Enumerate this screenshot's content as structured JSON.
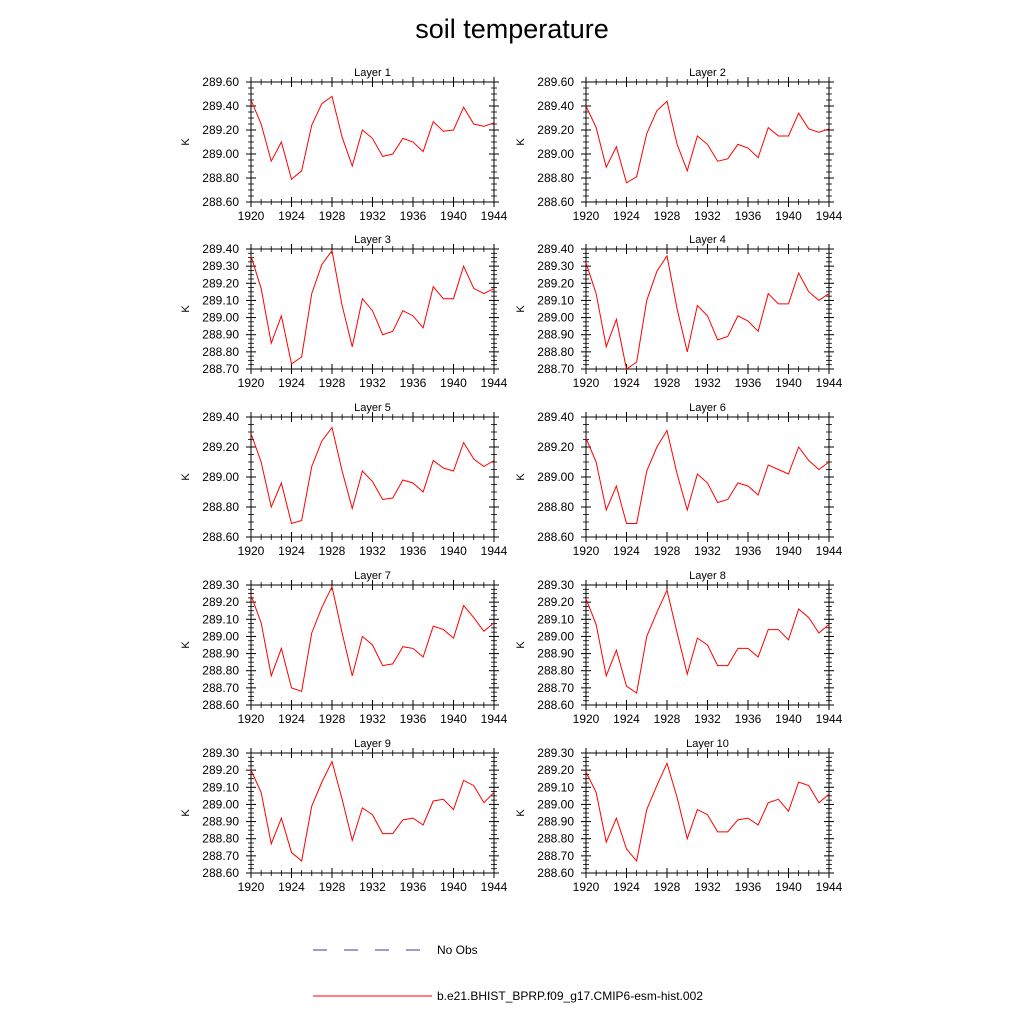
{
  "figure": {
    "title": "soil temperature"
  },
  "legend": {
    "items": [
      {
        "label": "No Obs",
        "color": "#3a3aa0",
        "style": "dashed"
      },
      {
        "label": "b.e21.BHIST_BPRP.f09_g17.CMIP6-esm-hist.002",
        "color": "#ff0000",
        "style": "solid"
      }
    ]
  },
  "chart_data": [
    {
      "type": "line",
      "title": "Layer 1",
      "ylabel": "K",
      "xlim": [
        1920,
        1944
      ],
      "ylim": [
        288.6,
        289.6
      ],
      "yticks": [
        "288.60",
        "288.80",
        "289.00",
        "289.20",
        "289.40",
        "289.60"
      ],
      "xticks": [
        "1920",
        "1924",
        "1928",
        "1932",
        "1936",
        "1940",
        "1944"
      ],
      "x": [
        1920,
        1921,
        1922,
        1923,
        1924,
        1925,
        1926,
        1927,
        1928,
        1929,
        1930,
        1931,
        1932,
        1933,
        1934,
        1935,
        1936,
        1937,
        1938,
        1939,
        1940,
        1941,
        1942,
        1943,
        1944
      ],
      "series": [
        {
          "name": "b.e21.BHIST_BPRP.f09_g17.CMIP6-esm-hist.002",
          "color": "#ff0000",
          "values": [
            289.45,
            289.25,
            288.94,
            289.1,
            288.79,
            288.86,
            289.24,
            289.42,
            289.48,
            289.14,
            288.9,
            289.2,
            289.13,
            288.98,
            289.0,
            289.13,
            289.1,
            289.02,
            289.27,
            289.19,
            289.2,
            289.39,
            289.25,
            289.23,
            289.26
          ]
        }
      ]
    },
    {
      "type": "line",
      "title": "Layer 2",
      "ylabel": "K",
      "xlim": [
        1920,
        1944
      ],
      "ylim": [
        288.6,
        289.6
      ],
      "yticks": [
        "288.60",
        "288.80",
        "289.00",
        "289.20",
        "289.40",
        "289.60"
      ],
      "xticks": [
        "1920",
        "1924",
        "1928",
        "1932",
        "1936",
        "1940",
        "1944"
      ],
      "x": [
        1920,
        1921,
        1922,
        1923,
        1924,
        1925,
        1926,
        1927,
        1928,
        1929,
        1930,
        1931,
        1932,
        1933,
        1934,
        1935,
        1936,
        1937,
        1938,
        1939,
        1940,
        1941,
        1942,
        1943,
        1944
      ],
      "series": [
        {
          "name": "b.e21.BHIST_BPRP.f09_g17.CMIP6-esm-hist.002",
          "color": "#ff0000",
          "values": [
            289.4,
            289.22,
            288.89,
            289.06,
            288.76,
            288.81,
            289.17,
            289.36,
            289.44,
            289.08,
            288.86,
            289.15,
            289.08,
            288.94,
            288.96,
            289.08,
            289.05,
            288.97,
            289.22,
            289.15,
            289.15,
            289.34,
            289.21,
            289.18,
            289.21
          ]
        }
      ]
    },
    {
      "type": "line",
      "title": "Layer 3",
      "ylabel": "K",
      "xlim": [
        1920,
        1944
      ],
      "ylim": [
        288.7,
        289.4
      ],
      "yticks": [
        "288.70",
        "288.80",
        "288.90",
        "289.00",
        "289.10",
        "289.20",
        "289.30",
        "289.40"
      ],
      "xticks": [
        "1920",
        "1924",
        "1928",
        "1932",
        "1936",
        "1940",
        "1944"
      ],
      "x": [
        1920,
        1921,
        1922,
        1923,
        1924,
        1925,
        1926,
        1927,
        1928,
        1929,
        1930,
        1931,
        1932,
        1933,
        1934,
        1935,
        1936,
        1937,
        1938,
        1939,
        1940,
        1941,
        1942,
        1943,
        1944
      ],
      "series": [
        {
          "name": "b.e21.BHIST_BPRP.f09_g17.CMIP6-esm-hist.002",
          "color": "#ff0000",
          "values": [
            289.36,
            289.17,
            288.85,
            289.01,
            288.73,
            288.77,
            289.14,
            289.31,
            289.39,
            289.07,
            288.83,
            289.11,
            289.04,
            288.9,
            288.92,
            289.04,
            289.01,
            288.94,
            289.18,
            289.11,
            289.11,
            289.3,
            289.17,
            289.14,
            289.17
          ]
        }
      ]
    },
    {
      "type": "line",
      "title": "Layer 4",
      "ylabel": "K",
      "xlim": [
        1920,
        1944
      ],
      "ylim": [
        288.7,
        289.4
      ],
      "yticks": [
        "288.70",
        "288.80",
        "288.90",
        "289.00",
        "289.10",
        "289.20",
        "289.30",
        "289.40"
      ],
      "xticks": [
        "1920",
        "1924",
        "1928",
        "1932",
        "1936",
        "1940",
        "1944"
      ],
      "x": [
        1920,
        1921,
        1922,
        1923,
        1924,
        1925,
        1926,
        1927,
        1928,
        1929,
        1930,
        1931,
        1932,
        1933,
        1934,
        1935,
        1936,
        1937,
        1938,
        1939,
        1940,
        1941,
        1942,
        1943,
        1944
      ],
      "series": [
        {
          "name": "b.e21.BHIST_BPRP.f09_g17.CMIP6-esm-hist.002",
          "color": "#ff0000",
          "values": [
            289.32,
            289.14,
            288.83,
            288.99,
            288.7,
            288.74,
            289.1,
            289.27,
            289.36,
            289.05,
            288.8,
            289.07,
            289.01,
            288.87,
            288.89,
            289.01,
            288.98,
            288.92,
            289.14,
            289.08,
            289.08,
            289.26,
            289.15,
            289.1,
            289.14
          ]
        }
      ]
    },
    {
      "type": "line",
      "title": "Layer 5",
      "ylabel": "K",
      "xlim": [
        1920,
        1944
      ],
      "ylim": [
        288.6,
        289.4
      ],
      "yticks": [
        "288.60",
        "288.80",
        "289.00",
        "289.20",
        "289.40"
      ],
      "xticks": [
        "1920",
        "1924",
        "1928",
        "1932",
        "1936",
        "1940",
        "1944"
      ],
      "x": [
        1920,
        1921,
        1922,
        1923,
        1924,
        1925,
        1926,
        1927,
        1928,
        1929,
        1930,
        1931,
        1932,
        1933,
        1934,
        1935,
        1936,
        1937,
        1938,
        1939,
        1940,
        1941,
        1942,
        1943,
        1944
      ],
      "series": [
        {
          "name": "b.e21.BHIST_BPRP.f09_g17.CMIP6-esm-hist.002",
          "color": "#ff0000",
          "values": [
            289.29,
            289.1,
            288.8,
            288.96,
            288.69,
            288.71,
            289.07,
            289.24,
            289.33,
            289.04,
            288.79,
            289.04,
            288.97,
            288.85,
            288.86,
            288.98,
            288.96,
            288.9,
            289.11,
            289.06,
            289.04,
            289.23,
            289.12,
            289.07,
            289.11
          ]
        }
      ]
    },
    {
      "type": "line",
      "title": "Layer 6",
      "ylabel": "K",
      "xlim": [
        1920,
        1944
      ],
      "ylim": [
        288.6,
        289.4
      ],
      "yticks": [
        "288.60",
        "288.80",
        "289.00",
        "289.20",
        "289.40"
      ],
      "xticks": [
        "1920",
        "1924",
        "1928",
        "1932",
        "1936",
        "1940",
        "1944"
      ],
      "x": [
        1920,
        1921,
        1922,
        1923,
        1924,
        1925,
        1926,
        1927,
        1928,
        1929,
        1930,
        1931,
        1932,
        1933,
        1934,
        1935,
        1936,
        1937,
        1938,
        1939,
        1940,
        1941,
        1942,
        1943,
        1944
      ],
      "series": [
        {
          "name": "b.e21.BHIST_BPRP.f09_g17.CMIP6-esm-hist.002",
          "color": "#ff0000",
          "values": [
            289.26,
            289.1,
            288.78,
            288.94,
            288.69,
            288.69,
            289.04,
            289.2,
            289.31,
            289.02,
            288.78,
            289.02,
            288.96,
            288.83,
            288.85,
            288.96,
            288.94,
            288.88,
            289.08,
            289.05,
            289.02,
            289.2,
            289.11,
            289.05,
            289.1
          ]
        }
      ]
    },
    {
      "type": "line",
      "title": "Layer 7",
      "ylabel": "K",
      "xlim": [
        1920,
        1944
      ],
      "ylim": [
        288.6,
        289.3
      ],
      "yticks": [
        "288.60",
        "288.70",
        "288.80",
        "288.90",
        "289.00",
        "289.10",
        "289.20",
        "289.30"
      ],
      "xticks": [
        "1920",
        "1924",
        "1928",
        "1932",
        "1936",
        "1940",
        "1944"
      ],
      "x": [
        1920,
        1921,
        1922,
        1923,
        1924,
        1925,
        1926,
        1927,
        1928,
        1929,
        1930,
        1931,
        1932,
        1933,
        1934,
        1935,
        1936,
        1937,
        1938,
        1939,
        1940,
        1941,
        1942,
        1943,
        1944
      ],
      "series": [
        {
          "name": "b.e21.BHIST_BPRP.f09_g17.CMIP6-esm-hist.002",
          "color": "#ff0000",
          "values": [
            289.24,
            289.08,
            288.77,
            288.93,
            288.7,
            288.68,
            289.02,
            289.17,
            289.29,
            289.02,
            288.77,
            289.0,
            288.95,
            288.83,
            288.84,
            288.94,
            288.93,
            288.88,
            289.06,
            289.04,
            288.99,
            289.18,
            289.11,
            289.03,
            289.08
          ]
        }
      ]
    },
    {
      "type": "line",
      "title": "Layer 8",
      "ylabel": "K",
      "xlim": [
        1920,
        1944
      ],
      "ylim": [
        288.6,
        289.3
      ],
      "yticks": [
        "288.60",
        "288.70",
        "288.80",
        "288.90",
        "289.00",
        "289.10",
        "289.20",
        "289.30"
      ],
      "xticks": [
        "1920",
        "1924",
        "1928",
        "1932",
        "1936",
        "1940",
        "1944"
      ],
      "x": [
        1920,
        1921,
        1922,
        1923,
        1924,
        1925,
        1926,
        1927,
        1928,
        1929,
        1930,
        1931,
        1932,
        1933,
        1934,
        1935,
        1936,
        1937,
        1938,
        1939,
        1940,
        1941,
        1942,
        1943,
        1944
      ],
      "series": [
        {
          "name": "b.e21.BHIST_BPRP.f09_g17.CMIP6-esm-hist.002",
          "color": "#ff0000",
          "values": [
            289.22,
            289.07,
            288.77,
            288.92,
            288.71,
            288.67,
            289.0,
            289.14,
            289.27,
            289.02,
            288.78,
            288.99,
            288.95,
            288.83,
            288.83,
            288.93,
            288.93,
            288.88,
            289.04,
            289.04,
            288.98,
            289.16,
            289.11,
            289.02,
            289.07
          ]
        }
      ]
    },
    {
      "type": "line",
      "title": "Layer 9",
      "ylabel": "K",
      "xlim": [
        1920,
        1944
      ],
      "ylim": [
        288.6,
        289.3
      ],
      "yticks": [
        "288.60",
        "288.70",
        "288.80",
        "288.90",
        "289.00",
        "289.10",
        "289.20",
        "289.30"
      ],
      "xticks": [
        "1920",
        "1924",
        "1928",
        "1932",
        "1936",
        "1940",
        "1944"
      ],
      "x": [
        1920,
        1921,
        1922,
        1923,
        1924,
        1925,
        1926,
        1927,
        1928,
        1929,
        1930,
        1931,
        1932,
        1933,
        1934,
        1935,
        1936,
        1937,
        1938,
        1939,
        1940,
        1941,
        1942,
        1943,
        1944
      ],
      "series": [
        {
          "name": "b.e21.BHIST_BPRP.f09_g17.CMIP6-esm-hist.002",
          "color": "#ff0000",
          "values": [
            289.2,
            289.07,
            288.77,
            288.92,
            288.72,
            288.67,
            288.99,
            289.13,
            289.25,
            289.03,
            288.79,
            288.98,
            288.94,
            288.83,
            288.83,
            288.91,
            288.92,
            288.88,
            289.02,
            289.03,
            288.97,
            289.14,
            289.11,
            289.01,
            289.07
          ]
        }
      ]
    },
    {
      "type": "line",
      "title": "Layer 10",
      "ylabel": "K",
      "xlim": [
        1920,
        1944
      ],
      "ylim": [
        288.6,
        289.3
      ],
      "yticks": [
        "288.60",
        "288.70",
        "288.80",
        "288.90",
        "289.00",
        "289.10",
        "289.20",
        "289.30"
      ],
      "xticks": [
        "1920",
        "1924",
        "1928",
        "1932",
        "1936",
        "1940",
        "1944"
      ],
      "x": [
        1920,
        1921,
        1922,
        1923,
        1924,
        1925,
        1926,
        1927,
        1928,
        1929,
        1930,
        1931,
        1932,
        1933,
        1934,
        1935,
        1936,
        1937,
        1938,
        1939,
        1940,
        1941,
        1942,
        1943,
        1944
      ],
      "series": [
        {
          "name": "b.e21.BHIST_BPRP.f09_g17.CMIP6-esm-hist.002",
          "color": "#ff0000",
          "values": [
            289.19,
            289.07,
            288.78,
            288.92,
            288.74,
            288.67,
            288.97,
            289.11,
            289.24,
            289.04,
            288.8,
            288.97,
            288.94,
            288.84,
            288.84,
            288.91,
            288.92,
            288.88,
            289.01,
            289.03,
            288.96,
            289.13,
            289.11,
            289.01,
            289.06
          ]
        }
      ]
    }
  ]
}
